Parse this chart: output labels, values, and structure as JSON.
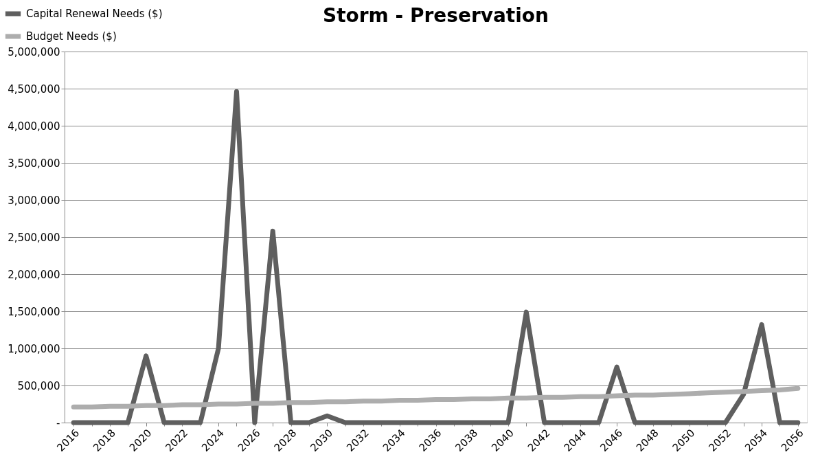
{
  "chart_data": {
    "type": "line",
    "title": "Storm - Preservation",
    "categories": [
      "2016",
      null,
      "2018",
      null,
      "2020",
      null,
      "2022",
      null,
      "2024",
      null,
      "2026",
      null,
      "2028",
      null,
      "2030",
      null,
      "2032",
      null,
      "2034",
      null,
      "2036",
      null,
      "2038",
      null,
      "2040",
      null,
      "2042",
      null,
      "2044",
      null,
      "2046",
      null,
      "2048",
      null,
      "2050",
      null,
      "2052",
      null,
      "2054",
      null,
      "2056"
    ],
    "series": [
      {
        "name": "Capital Renewal Needs ($)",
        "color": "#5f5f5f",
        "values": [
          0,
          0,
          0,
          0,
          900000,
          0,
          0,
          0,
          1000000,
          4460000,
          0,
          2580000,
          0,
          0,
          90000,
          0,
          0,
          0,
          0,
          0,
          0,
          0,
          0,
          0,
          0,
          1490000,
          0,
          0,
          0,
          0,
          750000,
          0,
          0,
          0,
          0,
          0,
          0,
          380000,
          1320000,
          0,
          0
        ]
      },
      {
        "name": "Budget Needs ($)",
        "color": "#adadad",
        "values": [
          210000,
          210000,
          220000,
          220000,
          230000,
          230000,
          240000,
          240000,
          250000,
          250000,
          260000,
          260000,
          270000,
          270000,
          280000,
          280000,
          290000,
          290000,
          300000,
          300000,
          310000,
          310000,
          320000,
          320000,
          330000,
          330000,
          340000,
          340000,
          350000,
          350000,
          360000,
          370000,
          370000,
          380000,
          390000,
          400000,
          410000,
          420000,
          430000,
          440000,
          460000
        ]
      }
    ],
    "ylim": [
      0,
      5000000
    ],
    "yticks": [
      {
        "value": 0,
        "label": "-"
      },
      {
        "value": 500000,
        "label": "500,000"
      },
      {
        "value": 1000000,
        "label": "1,000,000"
      },
      {
        "value": 1500000,
        "label": "1,500,000"
      },
      {
        "value": 2000000,
        "label": "2,000,000"
      },
      {
        "value": 2500000,
        "label": "2,500,000"
      },
      {
        "value": 3000000,
        "label": "3,000,000"
      },
      {
        "value": 3500000,
        "label": "3,500,000"
      },
      {
        "value": 4000000,
        "label": "4,000,000"
      },
      {
        "value": 4500000,
        "label": "4,500,000"
      },
      {
        "value": 5000000,
        "label": "5,000,000"
      }
    ],
    "grid": "y",
    "legend": "top left"
  }
}
